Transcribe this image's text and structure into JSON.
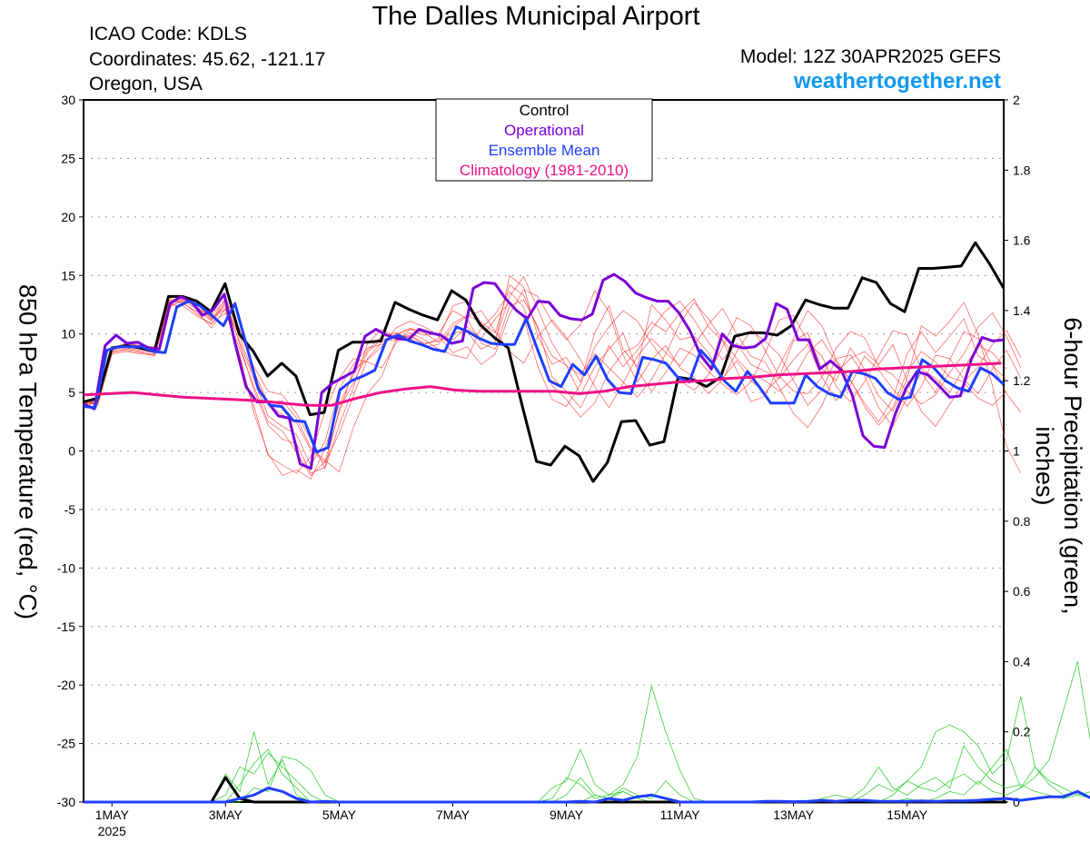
{
  "header": {
    "title": "The Dalles Municipal Airport",
    "icao": "ICAO Code: KDLS",
    "coordinates": "Coordinates: 45.62, -121.17",
    "region": "Oregon, USA",
    "model": "Model: 12Z 30APR2025 GEFS",
    "site": "weathertogether.net"
  },
  "colors": {
    "control": "#000000",
    "operational": "#7a00d6",
    "ensemble_mean": "#1f3fff",
    "climatology": "#ee1188",
    "members_temp": "#ff3b3b",
    "members_precip": "#22cc22",
    "site": "#1199ee"
  },
  "chart_data": {
    "type": "line",
    "xlabel": "",
    "ylabel": "850 hPa Temperature (red, °C)",
    "y2label": "6-hour Precipitation (green, inches)",
    "ylim": [
      -30,
      30
    ],
    "y2lim": [
      0,
      2
    ],
    "yticks": [
      "30",
      "25",
      "20",
      "15",
      "10",
      "5",
      "0",
      "-5",
      "-10",
      "-15",
      "-20",
      "-25",
      "-30"
    ],
    "y2ticks": [
      "2",
      "1.8",
      "1.6",
      "1.4",
      "1.2",
      "1",
      "0.8",
      "0.6",
      "0.4",
      "0.2",
      "0"
    ],
    "xticks": [
      {
        "day": 1,
        "label": "1MAY",
        "sub": "2025"
      },
      {
        "day": 3,
        "label": "3MAY",
        "sub": ""
      },
      {
        "day": 5,
        "label": "5MAY",
        "sub": ""
      },
      {
        "day": 7,
        "label": "7MAY",
        "sub": ""
      },
      {
        "day": 9,
        "label": "9MAY",
        "sub": ""
      },
      {
        "day": 11,
        "label": "11MAY",
        "sub": ""
      },
      {
        "day": 13,
        "label": "13MAY",
        "sub": ""
      },
      {
        "day": 15,
        "label": "15MAY",
        "sub": ""
      }
    ],
    "x_start_day": 0.5,
    "x_step_days": 0.25,
    "grid": true,
    "legend_position": "top-center",
    "legend": [
      "Control",
      "Operational",
      "Ensemble Mean",
      "Climatology (1981-2010)"
    ],
    "series": [
      {
        "name": "Control",
        "axis": "temp",
        "values": [
          4.2,
          4.5,
          8.8,
          9.0,
          8.8,
          8.5,
          13.2,
          13.2,
          12.8,
          11.9,
          14.3,
          10.0,
          8.5,
          6.4,
          7.5,
          6.4,
          3.1,
          3.3,
          8.6,
          9.3,
          9.3,
          9.4,
          12.7,
          12.1,
          11.6,
          11.2,
          13.7,
          12.9,
          10.8,
          9.7,
          8.8,
          3.8,
          -0.9,
          -1.2,
          0.4,
          -0.4,
          -2.6,
          -1.0,
          2.5,
          2.6,
          0.5,
          0.8,
          6.3,
          6.1,
          5.5,
          6.3,
          9.8,
          10.1,
          10.1,
          9.9,
          10.7,
          12.9,
          12.5,
          12.2,
          12.2,
          14.8,
          14.4,
          12.6,
          11.9,
          15.6,
          15.6,
          15.7,
          15.8,
          17.8,
          16.0,
          13.9
        ]
      },
      {
        "name": "Operational",
        "axis": "temp",
        "values": [
          4.0,
          3.6,
          9.0,
          9.9,
          9.2,
          9.3,
          8.8,
          8.7,
          12.6,
          13.2,
          12.7,
          11.6,
          12.1,
          13.4,
          9.2,
          5.5,
          4.2,
          4.2,
          3.0,
          2.8,
          -1.1,
          -1.5,
          5.0,
          5.8,
          6.3,
          6.8,
          9.8,
          10.4,
          9.9,
          9.6,
          9.5,
          10.4,
          10.1,
          9.9,
          9.2,
          9.4,
          13.9,
          14.4,
          14.3,
          13.0,
          12.0,
          11.3,
          12.8,
          12.7,
          11.6,
          11.3,
          11.2,
          11.7,
          14.6,
          15.1,
          14.5,
          13.5,
          13.1,
          12.8,
          12.8,
          11.8,
          10.3,
          8.2,
          7.0,
          10.0,
          9.0,
          8.8,
          8.9,
          9.6,
          12.6,
          12.1,
          9.5,
          9.5,
          7.0,
          7.7,
          6.9,
          4.8,
          1.3,
          0.4,
          0.3,
          3.2,
          5.4,
          6.8,
          6.5,
          5.6,
          4.6,
          4.7,
          7.8,
          9.7,
          9.4,
          9.5
        ]
      },
      {
        "name": "Ensemble Mean",
        "axis": "temp",
        "values": [
          3.8,
          3.7,
          8.6,
          8.9,
          8.9,
          8.9,
          8.5,
          8.4,
          12.3,
          12.8,
          12.4,
          11.6,
          10.7,
          12.6,
          9.0,
          5.3,
          3.9,
          3.8,
          2.6,
          2.5,
          -0.1,
          0.3,
          5.2,
          6.0,
          6.4,
          6.9,
          9.5,
          9.9,
          9.4,
          9.1,
          8.7,
          8.5,
          10.6,
          10.2,
          9.6,
          9.2,
          9.1,
          9.1,
          11.3,
          8.6,
          6.0,
          5.5,
          7.4,
          6.5,
          8.1,
          6.1,
          5.0,
          4.9,
          8.0,
          7.8,
          7.5,
          6.3,
          5.9,
          8.6,
          7.5,
          6.0,
          5.1,
          6.8,
          5.5,
          4.1,
          4.1,
          4.1,
          6.5,
          5.5,
          4.9,
          4.6,
          6.8,
          6.6,
          6.2,
          5.0,
          4.4,
          4.6,
          7.8,
          7.1,
          6.0,
          5.4,
          5.1,
          7.1,
          6.6,
          5.7
        ]
      },
      {
        "name": "Climatology (1981-2010)",
        "axis": "temp",
        "values": [
          4.8,
          4.9,
          5.0,
          4.8,
          4.6,
          4.5,
          4.4,
          4.3,
          4.1,
          3.9,
          3.9,
          4.5,
          5.0,
          5.3,
          5.5,
          5.2,
          5.1,
          5.1,
          5.1,
          5.1,
          4.9,
          5.1,
          5.5,
          5.7,
          5.9,
          6.0,
          6.2,
          6.3,
          6.5,
          6.6,
          6.7,
          6.8,
          7.0,
          7.1,
          7.2,
          7.3,
          7.4,
          7.5
        ]
      },
      {
        "name": "Control",
        "axis": "precip",
        "values": [
          0,
          0,
          0,
          0,
          0,
          0,
          0,
          0,
          0,
          0,
          0.07,
          0.01,
          0,
          0,
          0,
          0,
          0,
          0,
          0,
          0,
          0,
          0,
          0,
          0,
          0,
          0,
          0,
          0,
          0,
          0,
          0,
          0,
          0,
          0,
          0,
          0,
          0,
          0,
          0,
          0,
          0,
          0,
          0,
          0,
          0,
          0,
          0,
          0,
          0,
          0,
          0,
          0,
          0,
          0,
          0,
          0,
          0,
          0,
          0,
          0,
          0,
          0,
          0,
          0,
          0,
          0
        ]
      },
      {
        "name": "Ensemble Mean",
        "axis": "precip",
        "values": [
          0,
          0,
          0,
          0,
          0,
          0,
          0,
          0,
          0,
          0,
          0,
          0.01,
          0.02,
          0.04,
          0.03,
          0.01,
          0,
          0.002,
          0,
          0,
          0,
          0,
          0,
          0,
          0,
          0,
          0,
          0,
          0,
          0,
          0,
          0,
          0,
          0,
          0,
          0.002,
          0,
          0.01,
          0.005,
          0.015,
          0.02,
          0.01,
          0,
          0,
          0,
          0,
          0,
          0,
          0.002,
          0.002,
          0.001,
          0.002,
          0.005,
          0.002,
          0.005,
          0.005,
          0.002,
          0.002,
          0.002,
          0.003,
          0.002,
          0.003,
          0.003,
          0.005,
          0.008,
          0.01,
          0.005,
          0.01,
          0.015,
          0.015,
          0.03,
          0.01,
          0.005,
          0.005,
          0.005,
          0.003,
          0.002,
          0
        ]
      }
    ],
    "member_series_note": "",
    "temp_members": [
      [
        4.0,
        4.2,
        8.5,
        8.6,
        8.4,
        8.3,
        12.6,
        12.9,
        12.1,
        11.1,
        13.1,
        10.4,
        6.8,
        4.1,
        4.3,
        2.8,
        0.3,
        -0.8,
        -1.8,
        2.0,
        4.9,
        6.4,
        9.5,
        9.9,
        9.2,
        9.4,
        10.1,
        10.2,
        8.7,
        9.3,
        15.0,
        14.0,
        9.8,
        7.4,
        8.0,
        5.9,
        10.1,
        12.4,
        8.7,
        7.2,
        12.5,
        11.2,
        9.5,
        9.8,
        8.4,
        6.2,
        7.7,
        6.0,
        5.0,
        6.3,
        9.4,
        10.1,
        7.0,
        6.0,
        8.8,
        7.0,
        4.7,
        3.4,
        6.2,
        10.7,
        9.8,
        11.1,
        12.7,
        9.9,
        5.6,
        0.4,
        -1.9
      ],
      [
        3.9,
        4.4,
        8.9,
        9.1,
        9.0,
        8.7,
        12.9,
        12.7,
        11.7,
        10.8,
        12.8,
        9.1,
        5.2,
        2.2,
        1.0,
        0.6,
        -1.9,
        -1.4,
        3.6,
        5.8,
        8.4,
        9.6,
        9.4,
        10.1,
        9.5,
        8.7,
        8.2,
        7.9,
        10.5,
        11.7,
        13.6,
        12.3,
        8.4,
        5.6,
        4.4,
        2.9,
        4.1,
        6.8,
        8.4,
        9.0,
        11.0,
        10.2,
        11.8,
        13.0,
        10.6,
        9.4,
        6.9,
        4.2,
        4.7,
        7.3,
        9.6,
        12.0,
        10.7,
        7.8,
        6.0,
        4.1,
        2.5,
        4.5,
        8.3,
        10.2,
        8.4,
        9.8,
        11.3,
        8.1,
        7.4,
        4.9,
        3.3
      ],
      [
        4.1,
        4.0,
        8.7,
        8.9,
        8.8,
        8.6,
        12.4,
        12.8,
        12.5,
        11.4,
        12.1,
        7.6,
        3.8,
        -0.4,
        -1.2,
        -1.9,
        -0.5,
        3.4,
        6.2,
        7.9,
        7.6,
        7.1,
        9.2,
        10.4,
        10.3,
        9.8,
        8.4,
        8.9,
        7.4,
        8.3,
        11.7,
        13.8,
        13.2,
        11.0,
        9.5,
        10.8,
        13.7,
        11.9,
        8.2,
        5.9,
        7.8,
        9.0,
        7.1,
        6.3,
        4.9,
        6.1,
        8.5,
        10.3,
        9.4,
        8.2,
        6.0,
        3.9,
        5.2,
        7.9,
        8.2,
        6.4,
        3.7,
        2.1,
        4.6,
        6.7,
        5.0,
        7.8,
        10.2,
        9.6,
        7.3,
        6.1
      ],
      [
        3.7,
        4.3,
        8.4,
        8.7,
        8.5,
        8.1,
        12.2,
        13.0,
        12.3,
        11.2,
        12.4,
        9.3,
        6.1,
        3.0,
        2.1,
        1.4,
        -1.2,
        0.8,
        5.3,
        7.4,
        8.8,
        9.1,
        9.9,
        10.4,
        9.9,
        10.0,
        12.0,
        11.3,
        9.2,
        8.7,
        12.4,
        12.9,
        10.6,
        6.3,
        5.1,
        3.7,
        6.1,
        9.0,
        7.2,
        8.6,
        10.4,
        12.0,
        12.8,
        11.2,
        9.3,
        7.8,
        9.2,
        7.4,
        6.8,
        6.2,
        7.8,
        9.1,
        6.3,
        4.3,
        5.6,
        8.1,
        6.9,
        5.3,
        3.8,
        5.5,
        8.2,
        7.9,
        6.1,
        4.9,
        7.0,
        8.6,
        6.2
      ],
      [
        4.3,
        4.1,
        8.8,
        9.2,
        9.0,
        8.9,
        13.1,
        12.6,
        11.9,
        10.5,
        12.2,
        8.2,
        3.2,
        -0.2,
        -2.1,
        -1.6,
        -2.4,
        0.2,
        4.0,
        6.5,
        8.6,
        9.8,
        10.1,
        9.6,
        8.9,
        9.1,
        10.6,
        11.5,
        12.0,
        10.2,
        8.5,
        7.5,
        9.8,
        11.2,
        9.7,
        7.8,
        5.5,
        3.7,
        5.8,
        8.1,
        9.6,
        8.4,
        7.3,
        9.0,
        10.8,
        12.2,
        10.0,
        8.1,
        7.6,
        5.4,
        3.2,
        2.0,
        3.9,
        6.7,
        7.9,
        8.5,
        7.4,
        9.1,
        6.0,
        3.4,
        2.1,
        4.0,
        5.8,
        4.5,
        3.9,
        5.1
      ],
      [
        3.8,
        4.6,
        8.6,
        8.8,
        8.6,
        8.4,
        12.7,
        13.1,
        12.2,
        11.6,
        12.9,
        10.1,
        7.2,
        5.1,
        4.8,
        3.2,
        1.0,
        -1.5,
        2.2,
        5.4,
        9.2,
        10.4,
        9.7,
        9.8,
        9.1,
        9.6,
        12.4,
        12.8,
        10.9,
        9.5,
        13.2,
        14.9,
        12.1,
        9.2,
        7.3,
        4.8,
        7.2,
        8.7,
        10.1,
        6.9,
        5.1,
        6.7,
        8.8,
        8.2,
        6.8,
        5.7,
        4.8,
        5.9,
        8.4,
        11.2,
        11.6,
        9.3,
        8.1,
        5.5,
        4.2,
        5.9,
        8.1,
        10.3,
        9.9,
        7.0,
        6.2,
        5.0,
        7.1,
        9.0,
        8.4,
        7.0
      ],
      [
        4.2,
        3.9,
        8.3,
        8.5,
        8.3,
        8.2,
        12.5,
        12.4,
        11.5,
        10.9,
        11.8,
        8.7,
        5.5,
        2.5,
        1.7,
        -0.1,
        -2.1,
        -0.9,
        3.3,
        6.9,
        7.8,
        8.9,
        10.5,
        11.1,
        10.6,
        9.9,
        9.5,
        10.6,
        9.6,
        11.3,
        12.7,
        11.4,
        7.2,
        4.4,
        3.8,
        5.7,
        8.9,
        10.6,
        12.0,
        11.1,
        9.2,
        7.5,
        6.0,
        5.2,
        6.5,
        8.9,
        11.4,
        10.7,
        8.6,
        6.4,
        5.1,
        4.9,
        6.3,
        8.8,
        10.2,
        9.7,
        7.2,
        6.5,
        5.1,
        4.0,
        4.8,
        6.7,
        8.3,
        10.6,
        11.8,
        9.8,
        7.1
      ],
      [
        4.0,
        4.2,
        8.9,
        9.0,
        8.7,
        8.5,
        12.8,
        13.0,
        12.6,
        11.3,
        12.6,
        9.7,
        6.4,
        4.0,
        3.1,
        2.4,
        0.1,
        -1.0,
        1.5,
        4.7,
        7.9,
        9.3,
        10.0,
        10.5,
        10.1,
        9.3,
        10.9,
        11.6,
        11.0,
        10.1,
        14.2,
        13.3,
        10.4,
        8.1,
        7.3,
        6.5,
        8.3,
        7.1,
        5.9,
        4.6,
        6.1,
        8.3,
        10.9,
        12.7,
        11.3,
        9.5,
        7.9,
        6.6,
        6.0,
        5.1,
        6.2,
        8.4,
        9.5,
        7.6,
        6.1,
        3.8,
        2.2,
        3.7,
        6.8,
        8.5,
        7.6,
        6.3,
        5.9,
        7.2,
        9.1,
        10.3,
        8.0
      ]
    ],
    "precip_members": [
      [
        0,
        0,
        0,
        0,
        0,
        0,
        0,
        0,
        0,
        0,
        0.08,
        0.03,
        0.2,
        0.05,
        0.12,
        0.02,
        0,
        0,
        0,
        0,
        0,
        0,
        0,
        0,
        0,
        0,
        0,
        0,
        0,
        0,
        0,
        0,
        0,
        0.04,
        0.06,
        0.15,
        0.05,
        0.02,
        0.03,
        0.01,
        0,
        0,
        0,
        0,
        0,
        0,
        0,
        0,
        0,
        0,
        0,
        0,
        0,
        0,
        0,
        0,
        0,
        0.02,
        0.06,
        0.1,
        0.2,
        0.22,
        0.2,
        0.16,
        0.08,
        0.12,
        0.3,
        0.1,
        0.05,
        0.02,
        0.03,
        0.01
      ],
      [
        0,
        0,
        0,
        0,
        0,
        0,
        0,
        0,
        0,
        0,
        0,
        0.05,
        0.11,
        0.15,
        0.08,
        0.04,
        0,
        0,
        0,
        0,
        0,
        0,
        0,
        0,
        0,
        0,
        0,
        0,
        0,
        0,
        0,
        0,
        0,
        0.01,
        0.07,
        0.05,
        0.01,
        0.02,
        0.05,
        0.13,
        0.33,
        0.2,
        0.09,
        0.01,
        0,
        0,
        0,
        0,
        0,
        0,
        0,
        0,
        0.01,
        0.02,
        0.01,
        0.04,
        0.1,
        0.04,
        0.02,
        0.05,
        0.07,
        0.04,
        0.16,
        0.1,
        0.06,
        0.04,
        0.05,
        0.03,
        0.02,
        0.01,
        0.02,
        0.03
      ],
      [
        0,
        0,
        0,
        0,
        0,
        0,
        0,
        0,
        0,
        0,
        0.02,
        0.1,
        0.08,
        0.14,
        0.1,
        0.06,
        0.02,
        0,
        0,
        0,
        0,
        0,
        0,
        0,
        0,
        0,
        0,
        0,
        0,
        0,
        0,
        0,
        0,
        0,
        0.02,
        0.07,
        0.02,
        0.01,
        0.04,
        0.02,
        0.01,
        0.06,
        0.02,
        0,
        0,
        0,
        0,
        0,
        0,
        0,
        0,
        0,
        0,
        0,
        0,
        0.02,
        0.05,
        0.03,
        0.06,
        0.04,
        0.03,
        0.06,
        0.08,
        0.05,
        0.1,
        0.15,
        0.04,
        0.07,
        0.12,
        0.26,
        0.4,
        0.15
      ],
      [
        0,
        0,
        0,
        0,
        0,
        0,
        0,
        0,
        0,
        0,
        0,
        0,
        0.04,
        0.03,
        0.13,
        0.12,
        0.09,
        0.02,
        0,
        0,
        0,
        0,
        0,
        0,
        0,
        0,
        0,
        0,
        0,
        0,
        0,
        0,
        0,
        0,
        0,
        0,
        0.02,
        0.01,
        0.03,
        0.01,
        0,
        0,
        0,
        0,
        0,
        0,
        0,
        0,
        0,
        0,
        0,
        0,
        0,
        0,
        0,
        0,
        0,
        0,
        0.01,
        0,
        0.01,
        0.03,
        0.02,
        0.06,
        0.03,
        0.02,
        0.04,
        0.1,
        0.06,
        0.04,
        0.02,
        0.01
      ]
    ]
  }
}
